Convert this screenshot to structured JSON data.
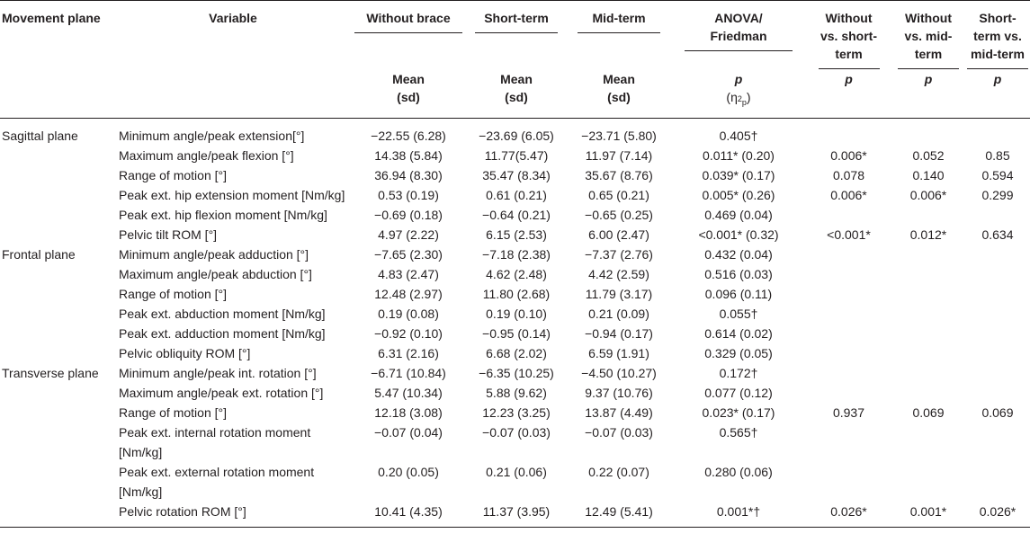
{
  "headers": {
    "plane": "Movement plane",
    "variable": "Variable",
    "without": "Without brace",
    "short": "Short-term",
    "mid": "Mid-term",
    "anova": "ANOVA/ Friedman",
    "wo_vs_short": "Without vs. short-term",
    "wo_vs_mid": "Without vs. mid-term",
    "short_vs_mid": "Short-term vs. mid-term",
    "mean": "Mean",
    "sd": "(sd)",
    "p": "p",
    "eta": "(η",
    "eta_sub": "p",
    "eta_sup": "2",
    "eta_close": ")"
  },
  "rows": [
    {
      "plane": "Sagittal plane",
      "variable": "Minimum angle/peak extension[°]",
      "without": "−22.55 (6.28)",
      "short": "−23.69 (6.05)",
      "mid": "−23.71 (5.80)",
      "anova": "0.405†",
      "p1": "",
      "p2": "",
      "p3": ""
    },
    {
      "plane": "",
      "variable": "Maximum angle/peak flexion [°]",
      "without": "14.38 (5.84)",
      "short": "11.77(5.47)",
      "mid": "11.97 (7.14)",
      "anova": "0.011* (0.20)",
      "p1": "0.006*",
      "p2": "0.052",
      "p3": "0.85"
    },
    {
      "plane": "",
      "variable": "Range of motion [°]",
      "without": "36.94 (8.30)",
      "short": "35.47 (8.34)",
      "mid": "35.67 (8.76)",
      "anova": "0.039* (0.17)",
      "p1": "0.078",
      "p2": "0.140",
      "p3": "0.594"
    },
    {
      "plane": "",
      "variable": "Peak ext. hip extension moment [Nm/kg]",
      "without": "0.53 (0.19)",
      "short": "0.61 (0.21)",
      "mid": "0.65 (0.21)",
      "anova": "0.005* (0.26)",
      "p1": "0.006*",
      "p2": "0.006*",
      "p3": "0.299"
    },
    {
      "plane": "",
      "variable": "Peak ext. hip flexion moment [Nm/kg]",
      "without": "−0.69 (0.18)",
      "short": "−0.64 (0.21)",
      "mid": "−0.65 (0.25)",
      "anova": "0.469 (0.04)",
      "p1": "",
      "p2": "",
      "p3": ""
    },
    {
      "plane": "",
      "variable": "Pelvic tilt ROM [°]",
      "without": "4.97 (2.22)",
      "short": "6.15 (2.53)",
      "mid": "6.00 (2.47)",
      "anova": "<0.001* (0.32)",
      "p1": "<0.001*",
      "p2": "0.012*",
      "p3": "0.634"
    },
    {
      "plane": "Frontal plane",
      "variable": "Minimum angle/peak adduction [°]",
      "without": "−7.65 (2.30)",
      "short": "−7.18 (2.38)",
      "mid": "−7.37 (2.76)",
      "anova": "0.432 (0.04)",
      "p1": "",
      "p2": "",
      "p3": ""
    },
    {
      "plane": "",
      "variable": "Maximum angle/peak abduction [°]",
      "without": "4.83 (2.47)",
      "short": "4.62 (2.48)",
      "mid": "4.42 (2.59)",
      "anova": "0.516 (0.03)",
      "p1": "",
      "p2": "",
      "p3": ""
    },
    {
      "plane": "",
      "variable": "Range of motion [°]",
      "without": "12.48 (2.97)",
      "short": "11.80 (2.68)",
      "mid": "11.79 (3.17)",
      "anova": "0.096 (0.11)",
      "p1": "",
      "p2": "",
      "p3": ""
    },
    {
      "plane": "",
      "variable": "Peak ext. abduction moment [Nm/kg]",
      "without": "0.19 (0.08)",
      "short": "0.19 (0.10)",
      "mid": "0.21 (0.09)",
      "anova": "0.055†",
      "p1": "",
      "p2": "",
      "p3": ""
    },
    {
      "plane": "",
      "variable": "Peak ext. adduction moment [Nm/kg]",
      "without": "−0.92 (0.10)",
      "short": "−0.95 (0.14)",
      "mid": "−0.94 (0.17)",
      "anova": "0.614 (0.02)",
      "p1": "",
      "p2": "",
      "p3": ""
    },
    {
      "plane": "",
      "variable": "Pelvic obliquity ROM [°]",
      "without": "6.31 (2.16)",
      "short": "6.68 (2.02)",
      "mid": "6.59 (1.91)",
      "anova": "0.329 (0.05)",
      "p1": "",
      "p2": "",
      "p3": ""
    },
    {
      "plane": "Transverse plane",
      "variable": "Minimum angle/peak int. rotation [°]",
      "without": "−6.71 (10.84)",
      "short": "−6.35 (10.25)",
      "mid": "−4.50 (10.27)",
      "anova": "0.172†",
      "p1": "",
      "p2": "",
      "p3": ""
    },
    {
      "plane": "",
      "variable": "Maximum angle/peak ext. rotation [°]",
      "without": "5.47 (10.34)",
      "short": "5.88 (9.62)",
      "mid": "9.37 (10.76)",
      "anova": "0.077 (0.12)",
      "p1": "",
      "p2": "",
      "p3": ""
    },
    {
      "plane": "",
      "variable": "Range of motion [°]",
      "without": "12.18 (3.08)",
      "short": "12.23 (3.25)",
      "mid": "13.87 (4.49)",
      "anova": "0.023* (0.17)",
      "p1": "0.937",
      "p2": "0.069",
      "p3": "0.069"
    },
    {
      "plane": "",
      "variable": "Peak ext. internal rotation moment [Nm/kg]",
      "without": "−0.07 (0.04)",
      "short": "−0.07 (0.03)",
      "mid": "−0.07 (0.03)",
      "anova": "0.565†",
      "p1": "",
      "p2": "",
      "p3": ""
    },
    {
      "plane": "",
      "variable": "Peak ext. external rotation moment [Nm/kg]",
      "without": "0.20 (0.05)",
      "short": "0.21 (0.06)",
      "mid": "0.22 (0.07)",
      "anova": "0.280 (0.06)",
      "p1": "",
      "p2": "",
      "p3": ""
    },
    {
      "plane": "",
      "variable": "Pelvic rotation ROM [°]",
      "without": "10.41 (4.35)",
      "short": "11.37 (3.95)",
      "mid": "12.49 (5.41)",
      "anova": "0.001*†",
      "p1": "0.026*",
      "p2": "0.001*",
      "p3": "0.026*"
    }
  ]
}
